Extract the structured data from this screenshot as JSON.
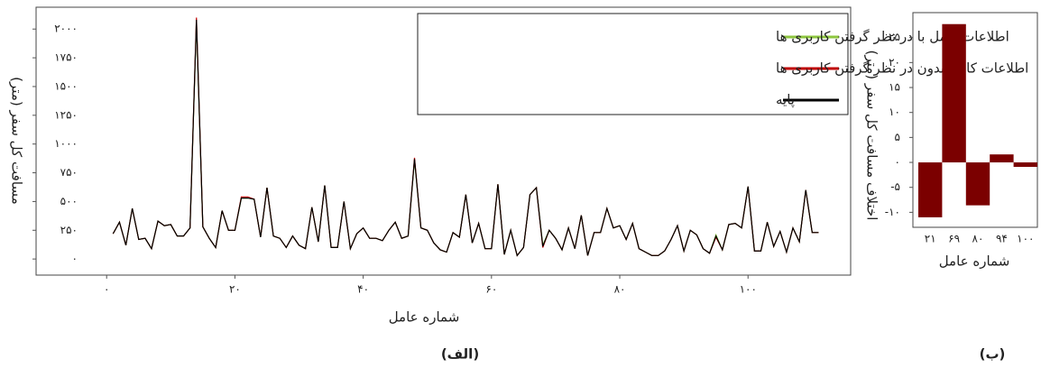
{
  "chart_data": [
    {
      "type": "line",
      "caption": "(الف)",
      "xlabel": "شماره عامل",
      "ylabel": "مسافت کل سفر (متر)",
      "xlim": [
        -11,
        116
      ],
      "ylim": [
        -140,
        2190
      ],
      "xticks": [
        {
          "value": 0,
          "label": "۰"
        },
        {
          "value": 20,
          "label": "۲۰"
        },
        {
          "value": 40,
          "label": "۴۰"
        },
        {
          "value": 60,
          "label": "۶۰"
        },
        {
          "value": 80,
          "label": "۸۰"
        },
        {
          "value": 100,
          "label": "۱۰۰"
        }
      ],
      "yticks": [
        {
          "value": 0,
          "label": "۰"
        },
        {
          "value": 250,
          "label": "۲۵۰"
        },
        {
          "value": 500,
          "label": "۵۰۰"
        },
        {
          "value": 750,
          "label": "۷۵۰"
        },
        {
          "value": 1000,
          "label": "۱۰۰۰"
        },
        {
          "value": 1250,
          "label": "۱۲۵۰"
        },
        {
          "value": 1500,
          "label": "۱۵۰۰"
        },
        {
          "value": 1750,
          "label": "۱۷۵۰"
        },
        {
          "value": 2000,
          "label": "۲۰۰۰"
        }
      ],
      "legend": "upper right",
      "x": [
        1,
        2,
        3,
        4,
        5,
        6,
        7,
        8,
        9,
        10,
        11,
        12,
        13,
        14,
        15,
        16,
        17,
        18,
        19,
        20,
        21,
        22,
        23,
        24,
        25,
        26,
        27,
        28,
        29,
        30,
        31,
        32,
        33,
        34,
        35,
        36,
        37,
        38,
        39,
        40,
        41,
        42,
        43,
        44,
        45,
        46,
        47,
        48,
        49,
        50,
        51,
        52,
        53,
        54,
        55,
        56,
        57,
        58,
        59,
        60,
        61,
        62,
        63,
        64,
        65,
        66,
        67,
        68,
        69,
        70,
        71,
        72,
        73,
        74,
        75,
        76,
        77,
        78,
        79,
        80,
        81,
        82,
        83,
        84,
        85,
        86,
        87,
        88,
        89,
        90,
        91,
        92,
        93,
        94,
        95,
        96,
        97,
        98,
        99,
        100,
        101,
        102,
        103,
        104,
        105,
        106,
        107,
        108,
        109,
        110,
        111
      ],
      "series": [
        {
          "name": "اطلاعات کامل با در نظر گرفتن کاربری ها",
          "color": "#8dc63f",
          "values": [
            220,
            320,
            120,
            440,
            170,
            180,
            90,
            330,
            290,
            300,
            200,
            200,
            270,
            2060,
            280,
            180,
            100,
            420,
            250,
            250,
            530,
            530,
            520,
            190,
            620,
            200,
            180,
            100,
            200,
            120,
            90,
            450,
            150,
            640,
            100,
            100,
            500,
            90,
            220,
            270,
            180,
            180,
            160,
            250,
            320,
            180,
            200,
            860,
            270,
            250,
            140,
            80,
            60,
            230,
            190,
            560,
            140,
            310,
            90,
            90,
            650,
            40,
            250,
            30,
            100,
            560,
            620,
            120,
            250,
            180,
            80,
            270,
            90,
            380,
            30,
            230,
            230,
            440,
            270,
            290,
            170,
            310,
            90,
            60,
            30,
            30,
            70,
            170,
            290,
            70,
            250,
            210,
            90,
            50,
            210,
            80,
            300,
            310,
            270,
            630,
            70,
            70,
            320,
            110,
            240,
            60,
            270,
            150,
            600,
            230,
            230
          ]
        },
        {
          "name": "اطلاعات کامل بدون در نظر گرفتن کاربری ها",
          "color": "#c00000",
          "values": [
            220,
            320,
            120,
            440,
            170,
            180,
            90,
            330,
            290,
            300,
            200,
            200,
            270,
            2100,
            280,
            180,
            100,
            420,
            250,
            250,
            540,
            540,
            520,
            190,
            620,
            200,
            180,
            100,
            200,
            120,
            90,
            450,
            150,
            640,
            100,
            100,
            500,
            90,
            220,
            270,
            180,
            180,
            160,
            250,
            320,
            180,
            200,
            880,
            270,
            250,
            140,
            80,
            60,
            230,
            190,
            560,
            140,
            310,
            90,
            90,
            650,
            40,
            250,
            30,
            100,
            560,
            620,
            100,
            250,
            180,
            80,
            270,
            90,
            380,
            30,
            230,
            230,
            440,
            270,
            290,
            170,
            310,
            90,
            60,
            30,
            30,
            70,
            170,
            290,
            70,
            250,
            210,
            90,
            50,
            190,
            80,
            300,
            310,
            270,
            630,
            70,
            70,
            320,
            110,
            240,
            60,
            270,
            150,
            600,
            230,
            230
          ]
        },
        {
          "name": "پایه",
          "color": "#000000",
          "values": [
            220,
            320,
            120,
            440,
            170,
            180,
            90,
            330,
            290,
            300,
            200,
            200,
            270,
            2080,
            280,
            180,
            100,
            420,
            250,
            250,
            530,
            530,
            520,
            190,
            620,
            200,
            180,
            100,
            200,
            120,
            90,
            450,
            150,
            640,
            100,
            100,
            500,
            90,
            220,
            270,
            180,
            180,
            160,
            250,
            320,
            180,
            200,
            870,
            270,
            250,
            140,
            80,
            60,
            230,
            190,
            560,
            140,
            310,
            90,
            90,
            650,
            40,
            250,
            30,
            100,
            560,
            620,
            110,
            250,
            180,
            80,
            270,
            90,
            380,
            30,
            230,
            230,
            440,
            270,
            290,
            170,
            310,
            90,
            60,
            30,
            30,
            70,
            170,
            290,
            70,
            250,
            210,
            90,
            50,
            200,
            80,
            300,
            310,
            270,
            630,
            70,
            70,
            320,
            110,
            240,
            60,
            270,
            150,
            600,
            230,
            230
          ]
        }
      ]
    },
    {
      "type": "bar",
      "caption": "(ب)",
      "xlabel": "شماره عامل",
      "ylabel": "اختلاف مسافت کل سفر (متر)",
      "categories": [
        "۲۱",
        "۶۹",
        "۸۰",
        "۹۴",
        "۱۰۰"
      ],
      "values": [
        -11,
        27.7,
        -8.6,
        1.6,
        -0.9
      ],
      "color": "#7b0000",
      "ylim": [
        -13,
        30
      ],
      "yticks": [
        {
          "value": -10,
          "label": "-۱۰"
        },
        {
          "value": -5,
          "label": "-۵"
        },
        {
          "value": 0,
          "label": "۰"
        },
        {
          "value": 5,
          "label": "۵"
        },
        {
          "value": 10,
          "label": "۱۰"
        },
        {
          "value": 15,
          "label": "۱۵"
        },
        {
          "value": 20,
          "label": "۲۰"
        },
        {
          "value": 25,
          "label": "۲۵"
        }
      ]
    }
  ]
}
